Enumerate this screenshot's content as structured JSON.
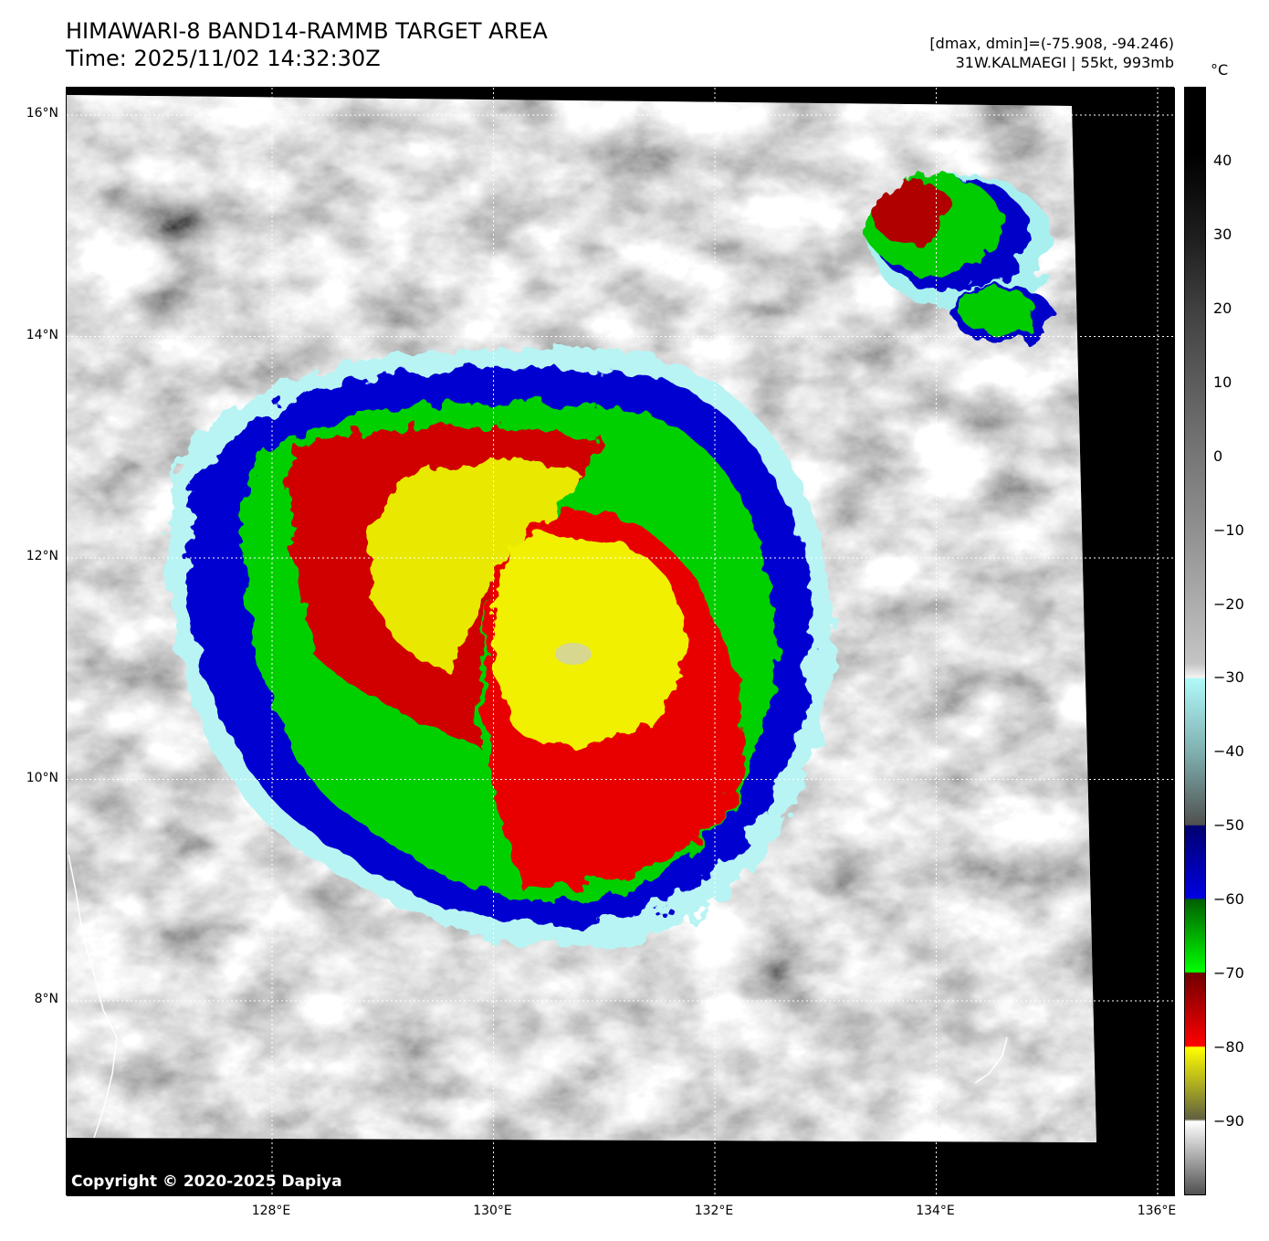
{
  "header": {
    "title": "HIMAWARI-8 BAND14-RAMMB TARGET AREA",
    "time": "Time: 2025/11/02 14:32:30Z",
    "range": "[dmax, dmin]=(-75.908, -94.246)",
    "storm": "31W.KALMAEGI | 55kt, 993mb"
  },
  "colorbar": {
    "unit": "°C",
    "ticks": [
      "40",
      "30",
      "20",
      "10",
      "0",
      "−10",
      "−20",
      "−30",
      "−40",
      "−50",
      "−60",
      "−70",
      "−80",
      "−90"
    ],
    "tick_values": [
      40,
      30,
      20,
      10,
      0,
      -10,
      -20,
      -30,
      -40,
      -50,
      -60,
      -70,
      -80,
      -90
    ],
    "range": [
      -100,
      50
    ]
  },
  "axes": {
    "lat_ticks": [
      "16°N",
      "14°N",
      "12°N",
      "10°N",
      "8°N"
    ],
    "lat_values": [
      16,
      14,
      12,
      10,
      8
    ],
    "lon_ticks": [
      "128°E",
      "130°E",
      "132°E",
      "134°E",
      "136°E"
    ],
    "lon_values": [
      128,
      130,
      132,
      134,
      136
    ]
  },
  "copyright": "Copyright © 2020-2025 Dapiya"
}
